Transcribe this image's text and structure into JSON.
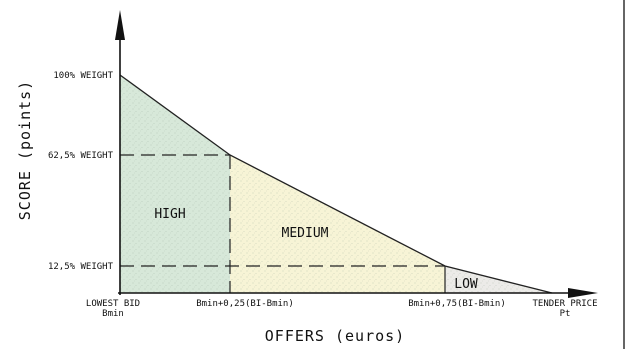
{
  "axes": {
    "y_title": "SCORE (points)",
    "x_title": "OFFERS (euros)"
  },
  "y_ticks": [
    "100% WEIGHT",
    "62,5% WEIGHT",
    "12,5% WEIGHT"
  ],
  "x_ticks": [
    {
      "line1": "LOWEST BID",
      "line2": "Bmin"
    },
    {
      "line1": "Bmin+0,25(BI-Bmin)",
      "line2": ""
    },
    {
      "line1": "Bmin+0,75(BI-Bmin)",
      "line2": ""
    },
    {
      "line1": "TENDER PRICE",
      "line2": "Pt"
    }
  ],
  "zones": {
    "high": "HIGH",
    "medium": "MEDIUM",
    "low": "LOW"
  },
  "colors": {
    "high_fill": "#d7e8d9",
    "medium_fill": "#f7f4d6",
    "low_fill": "#ecebe8",
    "line": "#222222"
  }
}
